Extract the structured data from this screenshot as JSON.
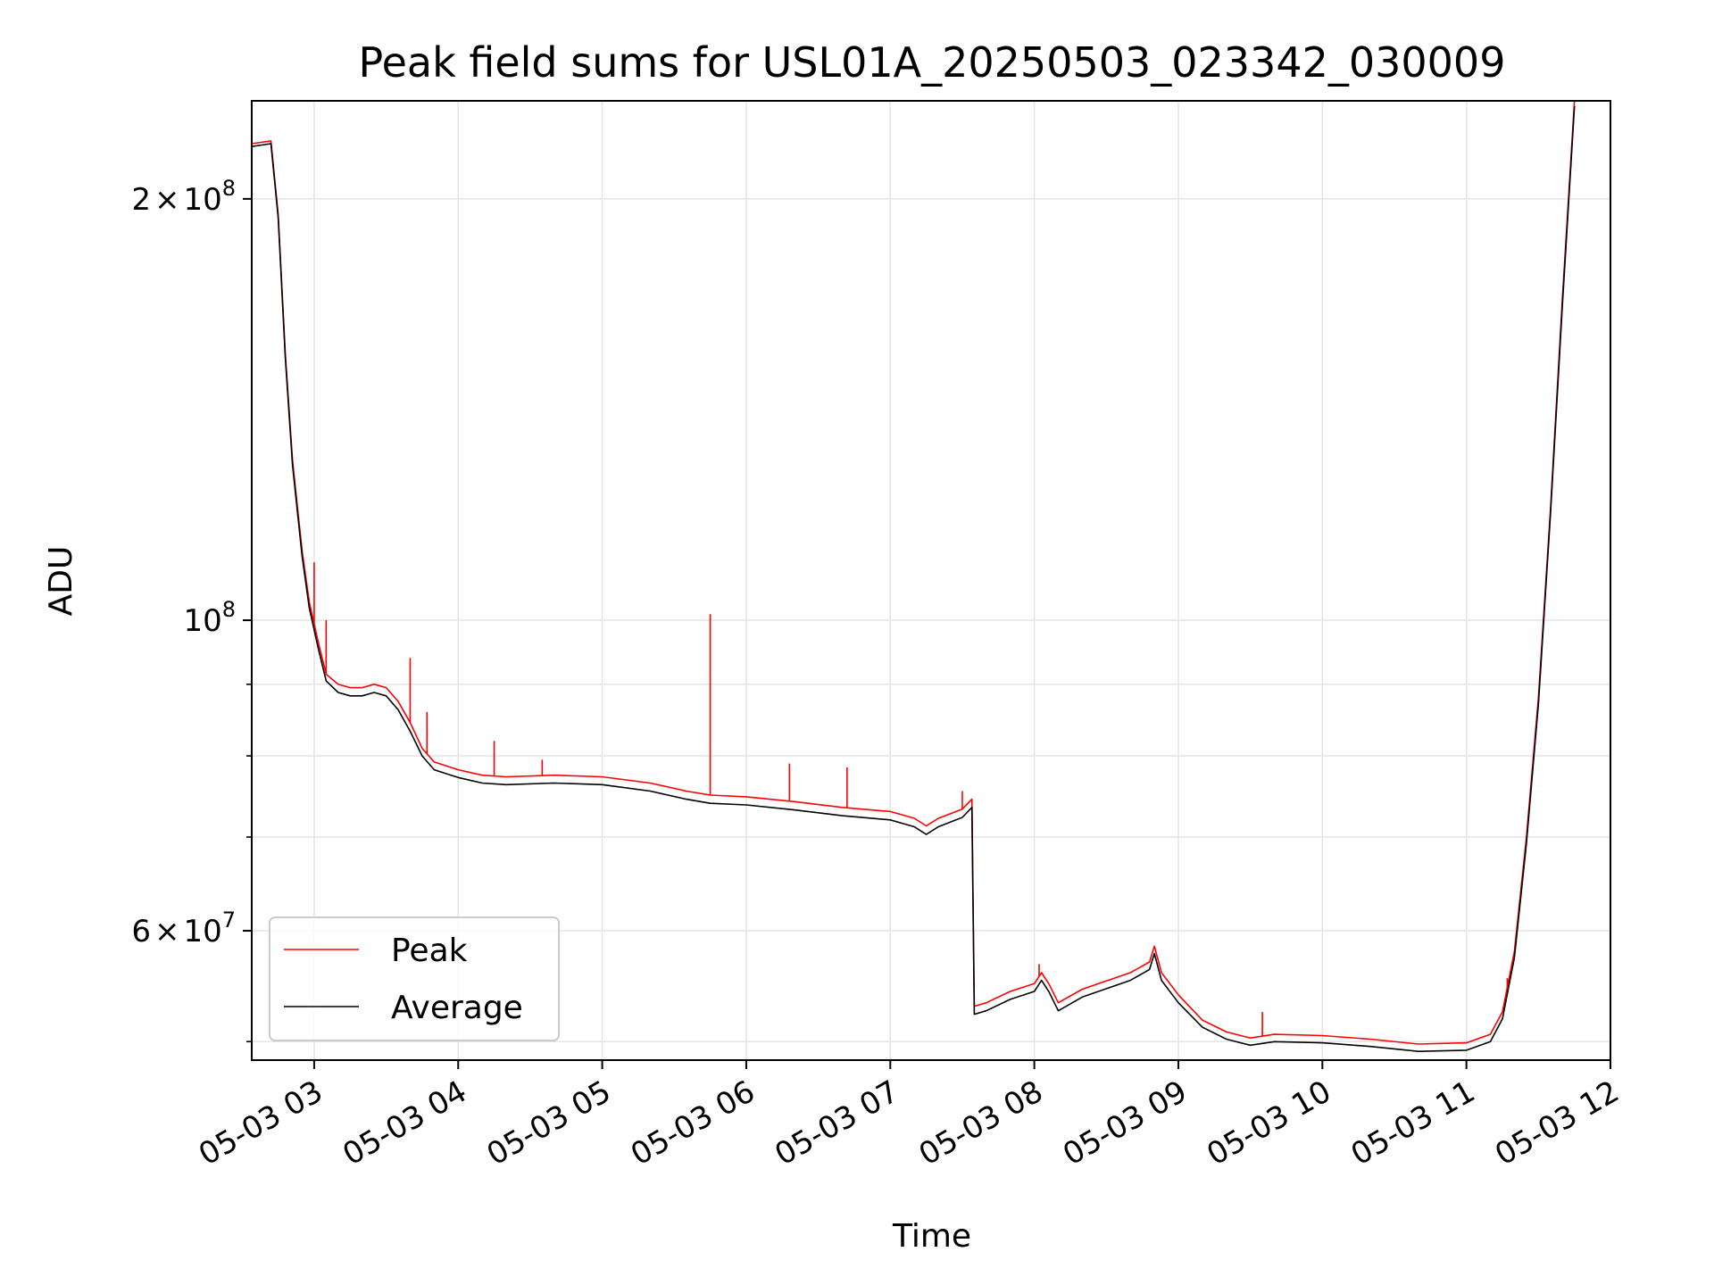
{
  "chart_data": {
    "type": "line",
    "title": "Peak field sums for USL01A_20250503_023342_030009",
    "xlabel": "Time",
    "ylabel": "ADU",
    "yscale": "log",
    "grid": true,
    "legend_position": "lower-left",
    "xlim": [
      "2025-05-03T02:34",
      "2025-05-03T12:00"
    ],
    "ylim": [
      48500000,
      235000000
    ],
    "x_ticks": [
      {
        "value": "2025-05-03T03:00",
        "label": "05-03 03"
      },
      {
        "value": "2025-05-03T04:00",
        "label": "05-03 04"
      },
      {
        "value": "2025-05-03T05:00",
        "label": "05-03 05"
      },
      {
        "value": "2025-05-03T06:00",
        "label": "05-03 06"
      },
      {
        "value": "2025-05-03T07:00",
        "label": "05-03 07"
      },
      {
        "value": "2025-05-03T08:00",
        "label": "05-03 08"
      },
      {
        "value": "2025-05-03T09:00",
        "label": "05-03 09"
      },
      {
        "value": "2025-05-03T10:00",
        "label": "05-03 10"
      },
      {
        "value": "2025-05-03T11:00",
        "label": "05-03 11"
      },
      {
        "value": "2025-05-03T12:00",
        "label": "05-03 12"
      }
    ],
    "y_major_ticks": [
      {
        "value": 200000000,
        "mant": "2",
        "times": "×",
        "base": "10",
        "exp": "8"
      },
      {
        "value": 100000000,
        "mant": "",
        "times": "",
        "base": "10",
        "exp": "8"
      },
      {
        "value": 60000000,
        "mant": "6",
        "times": "×",
        "base": "10",
        "exp": "7"
      }
    ],
    "y_minor_ticks": [
      50000000,
      70000000,
      80000000,
      90000000,
      300000000
    ],
    "series": [
      {
        "name": "Peak",
        "color": "#ff0000",
        "points": [
          [
            "2025-05-03T02:34",
            219000000
          ],
          [
            "2025-05-03T02:42",
            220000000
          ],
          [
            "2025-05-03T02:45",
            195000000
          ],
          [
            "2025-05-03T02:48",
            155000000
          ],
          [
            "2025-05-03T02:51",
            130000000
          ],
          [
            "2025-05-03T02:55",
            112000000
          ],
          [
            "2025-05-03T02:58",
            103000000
          ],
          [
            "2025-05-03T03:02",
            96000000
          ],
          [
            "2025-05-03T03:05",
            91500000
          ],
          [
            "2025-05-03T03:10",
            90000000
          ],
          [
            "2025-05-03T03:15",
            89500000
          ],
          [
            "2025-05-03T03:20",
            89500000
          ],
          [
            "2025-05-03T03:25",
            90000000
          ],
          [
            "2025-05-03T03:30",
            89500000
          ],
          [
            "2025-05-03T03:35",
            87500000
          ],
          [
            "2025-05-03T03:40",
            84500000
          ],
          [
            "2025-05-03T03:45",
            81000000
          ],
          [
            "2025-05-03T03:50",
            79200000
          ],
          [
            "2025-05-03T04:00",
            78200000
          ],
          [
            "2025-05-03T04:10",
            77500000
          ],
          [
            "2025-05-03T04:20",
            77300000
          ],
          [
            "2025-05-03T04:40",
            77500000
          ],
          [
            "2025-05-03T05:00",
            77300000
          ],
          [
            "2025-05-03T05:20",
            76500000
          ],
          [
            "2025-05-03T05:35",
            75500000
          ],
          [
            "2025-05-03T05:45",
            75000000
          ],
          [
            "2025-05-03T06:00",
            74800000
          ],
          [
            "2025-05-03T06:20",
            74200000
          ],
          [
            "2025-05-03T06:40",
            73500000
          ],
          [
            "2025-05-03T07:00",
            73000000
          ],
          [
            "2025-05-03T07:10",
            72200000
          ],
          [
            "2025-05-03T07:15",
            71300000
          ],
          [
            "2025-05-03T07:20",
            72200000
          ],
          [
            "2025-05-03T07:30",
            73300000
          ],
          [
            "2025-05-03T07:34",
            74500000
          ],
          [
            "2025-05-03T07:35",
            53000000
          ],
          [
            "2025-05-03T07:40",
            53300000
          ],
          [
            "2025-05-03T07:50",
            54300000
          ],
          [
            "2025-05-03T08:00",
            55000000
          ],
          [
            "2025-05-03T08:03",
            56000000
          ],
          [
            "2025-05-03T08:06",
            55000000
          ],
          [
            "2025-05-03T08:10",
            53300000
          ],
          [
            "2025-05-03T08:20",
            54500000
          ],
          [
            "2025-05-03T08:40",
            56000000
          ],
          [
            "2025-05-03T08:48",
            57000000
          ],
          [
            "2025-05-03T08:50",
            58500000
          ],
          [
            "2025-05-03T08:53",
            56000000
          ],
          [
            "2025-05-03T09:00",
            54000000
          ],
          [
            "2025-05-03T09:10",
            51800000
          ],
          [
            "2025-05-03T09:20",
            50800000
          ],
          [
            "2025-05-03T09:30",
            50300000
          ],
          [
            "2025-05-03T09:40",
            50600000
          ],
          [
            "2025-05-03T10:00",
            50500000
          ],
          [
            "2025-05-03T10:20",
            50200000
          ],
          [
            "2025-05-03T10:40",
            49800000
          ],
          [
            "2025-05-03T11:00",
            49900000
          ],
          [
            "2025-05-03T11:10",
            50600000
          ],
          [
            "2025-05-03T11:15",
            52500000
          ],
          [
            "2025-05-03T11:20",
            58000000
          ],
          [
            "2025-05-03T11:25",
            70000000
          ],
          [
            "2025-05-03T11:30",
            88000000
          ],
          [
            "2025-05-03T11:35",
            120000000
          ],
          [
            "2025-05-03T11:40",
            170000000
          ],
          [
            "2025-05-03T11:45",
            235000000
          ]
        ],
        "spikes": [
          [
            "2025-05-03T03:00",
            110000000
          ],
          [
            "2025-05-03T03:05",
            100000000
          ],
          [
            "2025-05-03T03:40",
            94000000
          ],
          [
            "2025-05-03T03:47",
            86000000
          ],
          [
            "2025-05-03T04:15",
            82000000
          ],
          [
            "2025-05-03T04:35",
            79500000
          ],
          [
            "2025-05-03T05:45",
            101000000
          ],
          [
            "2025-05-03T06:18",
            79000000
          ],
          [
            "2025-05-03T06:42",
            78500000
          ],
          [
            "2025-05-03T07:30",
            75500000
          ],
          [
            "2025-05-03T08:02",
            56800000
          ],
          [
            "2025-05-03T09:35",
            52500000
          ],
          [
            "2025-05-03T11:17",
            55500000
          ]
        ]
      },
      {
        "name": "Average",
        "color": "#000000",
        "points": [
          [
            "2025-05-03T02:34",
            218000000
          ],
          [
            "2025-05-03T02:42",
            219000000
          ],
          [
            "2025-05-03T02:45",
            194000000
          ],
          [
            "2025-05-03T02:48",
            154000000
          ],
          [
            "2025-05-03T02:51",
            129000000
          ],
          [
            "2025-05-03T02:55",
            111000000
          ],
          [
            "2025-05-03T02:58",
            102000000
          ],
          [
            "2025-05-03T03:02",
            95000000
          ],
          [
            "2025-05-03T03:05",
            90500000
          ],
          [
            "2025-05-03T03:10",
            88800000
          ],
          [
            "2025-05-03T03:15",
            88300000
          ],
          [
            "2025-05-03T03:20",
            88300000
          ],
          [
            "2025-05-03T03:25",
            88800000
          ],
          [
            "2025-05-03T03:30",
            88300000
          ],
          [
            "2025-05-03T03:35",
            86300000
          ],
          [
            "2025-05-03T03:40",
            83300000
          ],
          [
            "2025-05-03T03:45",
            80000000
          ],
          [
            "2025-05-03T03:50",
            78200000
          ],
          [
            "2025-05-03T04:00",
            77200000
          ],
          [
            "2025-05-03T04:10",
            76500000
          ],
          [
            "2025-05-03T04:20",
            76300000
          ],
          [
            "2025-05-03T04:40",
            76500000
          ],
          [
            "2025-05-03T05:00",
            76300000
          ],
          [
            "2025-05-03T05:20",
            75500000
          ],
          [
            "2025-05-03T05:35",
            74500000
          ],
          [
            "2025-05-03T05:45",
            74000000
          ],
          [
            "2025-05-03T06:00",
            73800000
          ],
          [
            "2025-05-03T06:20",
            73200000
          ],
          [
            "2025-05-03T06:40",
            72500000
          ],
          [
            "2025-05-03T07:00",
            72000000
          ],
          [
            "2025-05-03T07:10",
            71200000
          ],
          [
            "2025-05-03T07:15",
            70300000
          ],
          [
            "2025-05-03T07:20",
            71200000
          ],
          [
            "2025-05-03T07:30",
            72300000
          ],
          [
            "2025-05-03T07:34",
            73500000
          ],
          [
            "2025-05-03T07:35",
            52300000
          ],
          [
            "2025-05-03T07:40",
            52600000
          ],
          [
            "2025-05-03T07:50",
            53600000
          ],
          [
            "2025-05-03T08:00",
            54300000
          ],
          [
            "2025-05-03T08:03",
            55300000
          ],
          [
            "2025-05-03T08:06",
            54300000
          ],
          [
            "2025-05-03T08:10",
            52600000
          ],
          [
            "2025-05-03T08:20",
            53800000
          ],
          [
            "2025-05-03T08:40",
            55300000
          ],
          [
            "2025-05-03T08:48",
            56300000
          ],
          [
            "2025-05-03T08:50",
            57800000
          ],
          [
            "2025-05-03T08:53",
            55300000
          ],
          [
            "2025-05-03T09:00",
            53300000
          ],
          [
            "2025-05-03T09:10",
            51200000
          ],
          [
            "2025-05-03T09:20",
            50200000
          ],
          [
            "2025-05-03T09:30",
            49700000
          ],
          [
            "2025-05-03T09:40",
            50000000
          ],
          [
            "2025-05-03T10:00",
            49900000
          ],
          [
            "2025-05-03T10:20",
            49600000
          ],
          [
            "2025-05-03T10:40",
            49200000
          ],
          [
            "2025-05-03T11:00",
            49300000
          ],
          [
            "2025-05-03T11:10",
            50000000
          ],
          [
            "2025-05-03T11:15",
            51900000
          ],
          [
            "2025-05-03T11:20",
            57400000
          ],
          [
            "2025-05-03T11:25",
            69300000
          ],
          [
            "2025-05-03T11:30",
            87100000
          ],
          [
            "2025-05-03T11:35",
            119000000
          ],
          [
            "2025-05-03T11:40",
            168000000
          ],
          [
            "2025-05-03T11:45",
            233000000
          ]
        ]
      }
    ]
  }
}
